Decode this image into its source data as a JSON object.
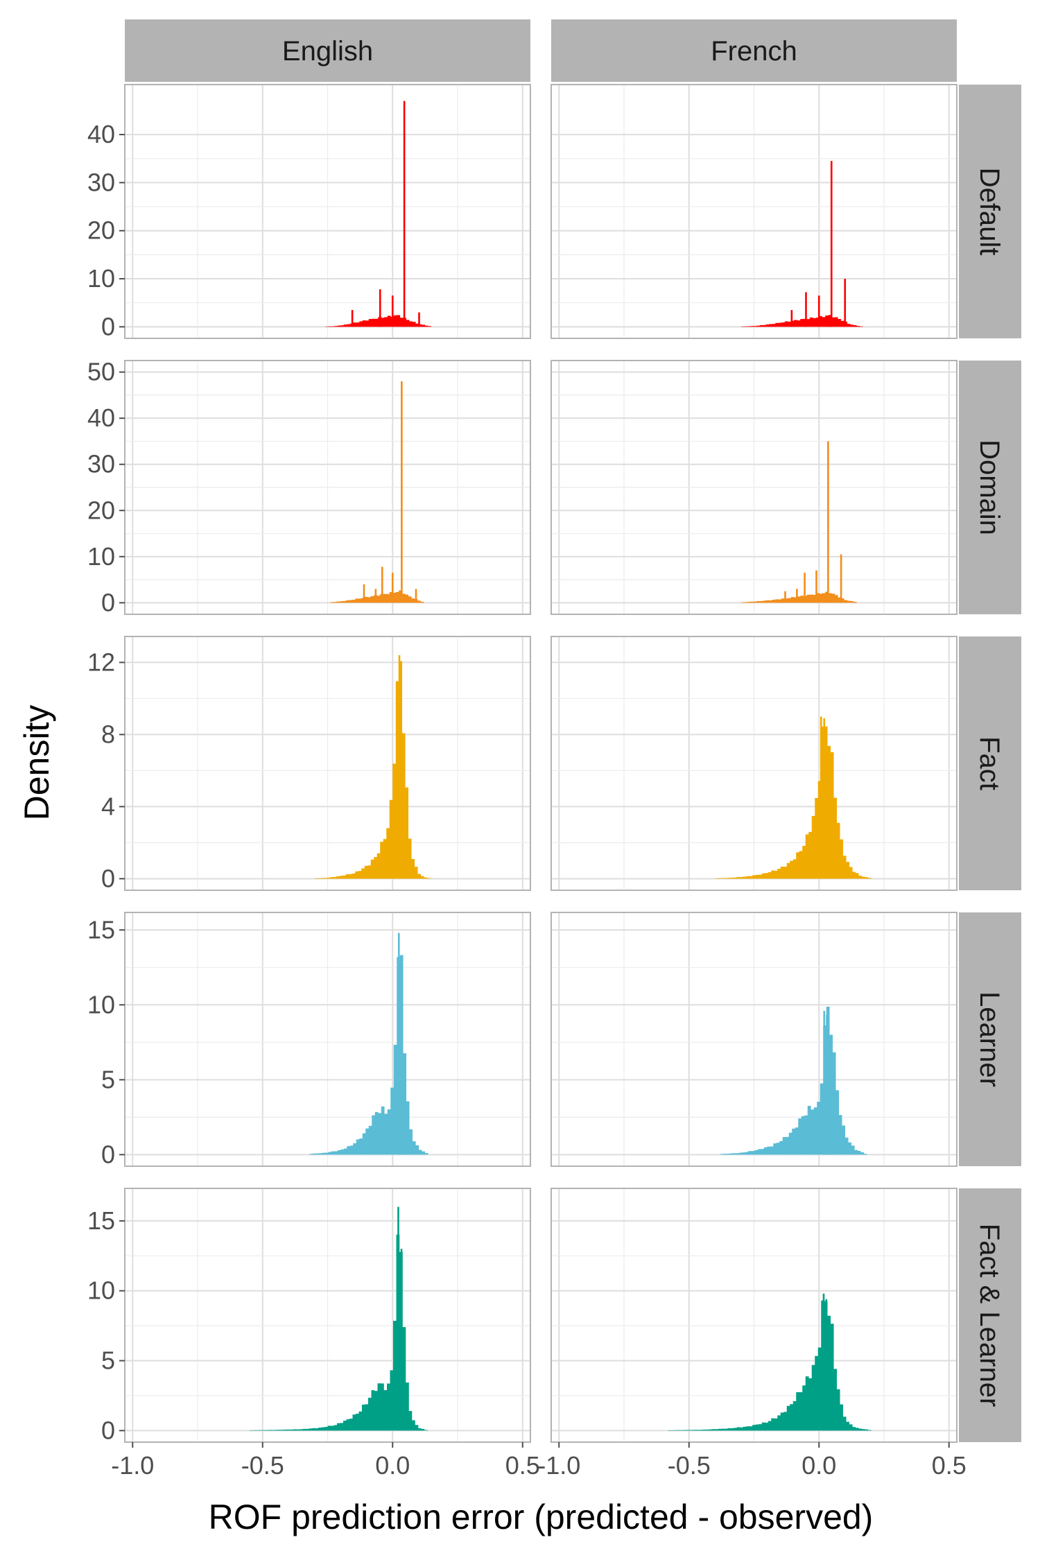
{
  "chart_data": {
    "type": "histogram-facet",
    "xlabel": "ROF prediction error (predicted - observed)",
    "ylabel": "Density",
    "x_range": [
      -1.0,
      0.5
    ],
    "x_ticks": [
      -1.0,
      -0.5,
      0.0,
      0.5
    ],
    "x_tick_labels": [
      "-1.0",
      "-0.5",
      "0.0",
      "0.5"
    ],
    "grid": true,
    "columns": [
      "English",
      "French"
    ],
    "rows": [
      {
        "name": "Default",
        "color": "#ff0000",
        "ylim": [
          0,
          48
        ],
        "yticks": [
          0,
          10,
          20,
          30,
          40
        ],
        "panels": [
          {
            "base": [
              [
                -0.26,
                0.05
              ],
              [
                -0.22,
                0.15
              ],
              [
                -0.18,
                0.45
              ],
              [
                -0.14,
                0.9
              ],
              [
                -0.1,
                1.4
              ],
              [
                -0.06,
                1.8
              ],
              [
                -0.02,
                2.1
              ],
              [
                0.02,
                2.4
              ],
              [
                0.06,
                1.4
              ],
              [
                0.1,
                0.6
              ],
              [
                0.14,
                0.15
              ]
            ],
            "spikes": [
              [
                -0.155,
                3.5
              ],
              [
                -0.048,
                7.8
              ],
              [
                0.0,
                6.5
              ],
              [
                0.045,
                47
              ],
              [
                0.102,
                3
              ]
            ]
          },
          {
            "base": [
              [
                -0.3,
                0.05
              ],
              [
                -0.24,
                0.2
              ],
              [
                -0.18,
                0.6
              ],
              [
                -0.12,
                1.1
              ],
              [
                -0.06,
                1.6
              ],
              [
                0.0,
                2.0
              ],
              [
                0.04,
                2.4
              ],
              [
                0.08,
                1.6
              ],
              [
                0.12,
                0.5
              ],
              [
                0.16,
                0.1
              ]
            ],
            "spikes": [
              [
                -0.105,
                3.5
              ],
              [
                -0.05,
                7.2
              ],
              [
                0.0,
                6.5
              ],
              [
                0.048,
                34.5
              ],
              [
                0.1,
                10
              ]
            ]
          }
        ]
      },
      {
        "name": "Domain",
        "color": "#f28e1c",
        "ylim": [
          0,
          50
        ],
        "yticks": [
          0,
          10,
          20,
          30,
          40,
          50
        ],
        "panels": [
          {
            "base": [
              [
                -0.24,
                0.1
              ],
              [
                -0.2,
                0.3
              ],
              [
                -0.16,
                0.6
              ],
              [
                -0.12,
                1.0
              ],
              [
                -0.08,
                1.4
              ],
              [
                -0.04,
                1.8
              ],
              [
                0.0,
                2.2
              ],
              [
                0.03,
                2.5
              ],
              [
                0.07,
                1.2
              ],
              [
                0.1,
                0.5
              ],
              [
                0.12,
                0.1
              ]
            ],
            "spikes": [
              [
                -0.11,
                4.0
              ],
              [
                -0.065,
                3.0
              ],
              [
                -0.04,
                7.8
              ],
              [
                0.0,
                6.5
              ],
              [
                0.035,
                48
              ],
              [
                0.09,
                3
              ]
            ]
          },
          {
            "base": [
              [
                -0.3,
                0.1
              ],
              [
                -0.24,
                0.3
              ],
              [
                -0.18,
                0.6
              ],
              [
                -0.12,
                1.0
              ],
              [
                -0.06,
                1.5
              ],
              [
                0.0,
                2.0
              ],
              [
                0.04,
                2.3
              ],
              [
                0.07,
                1.5
              ],
              [
                0.1,
                0.6
              ],
              [
                0.14,
                0.2
              ]
            ],
            "spikes": [
              [
                -0.13,
                2.5
              ],
              [
                -0.085,
                3.0
              ],
              [
                -0.055,
                6.5
              ],
              [
                -0.01,
                7.0
              ],
              [
                0.035,
                35
              ],
              [
                0.085,
                10.5
              ]
            ]
          }
        ]
      },
      {
        "name": "Fact",
        "color": "#f0ab00",
        "ylim": [
          0,
          12.8
        ],
        "yticks": [
          0,
          4,
          8,
          12
        ],
        "panels": [
          {
            "base": [
              [
                -0.3,
                0.02
              ],
              [
                -0.25,
                0.05
              ],
              [
                -0.2,
                0.15
              ],
              [
                -0.15,
                0.3
              ],
              [
                -0.12,
                0.5
              ],
              [
                -0.09,
                0.8
              ],
              [
                -0.06,
                1.3
              ],
              [
                -0.045,
                1.8
              ],
              [
                -0.03,
                2.3
              ],
              [
                -0.015,
                3.0
              ],
              [
                0.0,
                4.8
              ],
              [
                0.012,
                9.0
              ],
              [
                0.024,
                12.3
              ],
              [
                0.036,
                11.0
              ],
              [
                0.048,
                6.5
              ],
              [
                0.06,
                3.0
              ],
              [
                0.072,
                1.5
              ],
              [
                0.084,
                0.8
              ],
              [
                0.1,
                0.3
              ],
              [
                0.12,
                0.08
              ],
              [
                0.15,
                0.01
              ]
            ],
            "spikes": [
              [
                0.018,
                10.8
              ],
              [
                0.026,
                12.4
              ]
            ]
          },
          {
            "base": [
              [
                -0.4,
                0.02
              ],
              [
                -0.34,
                0.05
              ],
              [
                -0.28,
                0.12
              ],
              [
                -0.22,
                0.25
              ],
              [
                -0.16,
                0.5
              ],
              [
                -0.12,
                0.8
              ],
              [
                -0.09,
                1.2
              ],
              [
                -0.06,
                1.8
              ],
              [
                -0.04,
                2.5
              ],
              [
                -0.02,
                3.5
              ],
              [
                -0.01,
                4.3
              ],
              [
                0.0,
                5.5
              ],
              [
                0.012,
                7.8
              ],
              [
                0.024,
                8.6
              ],
              [
                0.036,
                8.0
              ],
              [
                0.048,
                6.8
              ],
              [
                0.06,
                5.0
              ],
              [
                0.075,
                3.0
              ],
              [
                0.09,
                1.7
              ],
              [
                0.11,
                0.9
              ],
              [
                0.13,
                0.45
              ],
              [
                0.16,
                0.15
              ],
              [
                0.2,
                0.03
              ]
            ],
            "spikes": [
              [
                0.008,
                9.0
              ],
              [
                0.02,
                8.9
              ]
            ]
          }
        ]
      },
      {
        "name": "Learner",
        "color": "#5bbcd6",
        "ylim": [
          0,
          15.4
        ],
        "yticks": [
          0,
          5,
          10,
          15
        ],
        "panels": [
          {
            "base": [
              [
                -0.32,
                0.05
              ],
              [
                -0.26,
                0.12
              ],
              [
                -0.2,
                0.3
              ],
              [
                -0.16,
                0.6
              ],
              [
                -0.13,
                1.0
              ],
              [
                -0.1,
                1.6
              ],
              [
                -0.08,
                2.3
              ],
              [
                -0.06,
                2.9
              ],
              [
                -0.04,
                3.0
              ],
              [
                -0.02,
                2.8
              ],
              [
                -0.005,
                3.5
              ],
              [
                0.006,
                6.0
              ],
              [
                0.018,
                11.8
              ],
              [
                0.03,
                14.8
              ],
              [
                0.042,
                9.0
              ],
              [
                0.054,
                4.0
              ],
              [
                0.066,
                2.0
              ],
              [
                0.08,
                1.0
              ],
              [
                0.1,
                0.4
              ],
              [
                0.13,
                0.1
              ]
            ],
            "spikes": [
              [
                0.024,
                14.8
              ],
              [
                0.036,
                12.0
              ]
            ]
          },
          {
            "base": [
              [
                -0.38,
                0.04
              ],
              [
                -0.3,
                0.12
              ],
              [
                -0.24,
                0.3
              ],
              [
                -0.18,
                0.6
              ],
              [
                -0.14,
                1.0
              ],
              [
                -0.1,
                1.6
              ],
              [
                -0.07,
                2.4
              ],
              [
                -0.04,
                3.0
              ],
              [
                -0.02,
                3.2
              ],
              [
                0.0,
                3.3
              ],
              [
                0.012,
                5.5
              ],
              [
                0.024,
                9.0
              ],
              [
                0.036,
                9.6
              ],
              [
                0.048,
                8.5
              ],
              [
                0.06,
                6.0
              ],
              [
                0.075,
                3.5
              ],
              [
                0.09,
                2.0
              ],
              [
                0.11,
                1.0
              ],
              [
                0.14,
                0.35
              ],
              [
                0.18,
                0.05
              ]
            ],
            "spikes": [
              [
                0.02,
                9.6
              ],
              [
                0.03,
                9.3
              ]
            ]
          }
        ]
      },
      {
        "name": "Fact & Learner",
        "color": "#00a087",
        "ylim": [
          0,
          16.5
        ],
        "yticks": [
          0,
          5,
          10,
          15
        ],
        "panels": [
          {
            "base": [
              [
                -0.55,
                0.02
              ],
              [
                -0.45,
                0.05
              ],
              [
                -0.35,
                0.1
              ],
              [
                -0.28,
                0.2
              ],
              [
                -0.22,
                0.4
              ],
              [
                -0.17,
                0.8
              ],
              [
                -0.13,
                1.3
              ],
              [
                -0.1,
                2.0
              ],
              [
                -0.08,
                2.6
              ],
              [
                -0.06,
                3.2
              ],
              [
                -0.04,
                3.3
              ],
              [
                -0.02,
                3.0
              ],
              [
                -0.008,
                3.4
              ],
              [
                0.004,
                6.5
              ],
              [
                0.016,
                11.5
              ],
              [
                0.028,
                16.0
              ],
              [
                0.04,
                9.0
              ],
              [
                0.052,
                4.0
              ],
              [
                0.064,
                1.8
              ],
              [
                0.08,
                0.7
              ],
              [
                0.1,
                0.2
              ],
              [
                0.13,
                0.03
              ]
            ],
            "spikes": [
              [
                0.022,
                16.0
              ],
              [
                0.034,
                13.0
              ]
            ]
          },
          {
            "base": [
              [
                -0.58,
                0.02
              ],
              [
                -0.45,
                0.06
              ],
              [
                -0.35,
                0.15
              ],
              [
                -0.27,
                0.3
              ],
              [
                -0.2,
                0.6
              ],
              [
                -0.15,
                1.1
              ],
              [
                -0.11,
                1.8
              ],
              [
                -0.08,
                2.6
              ],
              [
                -0.05,
                3.5
              ],
              [
                -0.03,
                4.2
              ],
              [
                -0.015,
                4.8
              ],
              [
                0.0,
                6.0
              ],
              [
                0.012,
                8.5
              ],
              [
                0.024,
                9.6
              ],
              [
                0.036,
                8.8
              ],
              [
                0.048,
                7.5
              ],
              [
                0.06,
                5.0
              ],
              [
                0.075,
                2.8
              ],
              [
                0.09,
                1.4
              ],
              [
                0.11,
                0.6
              ],
              [
                0.14,
                0.2
              ],
              [
                0.2,
                0.03
              ]
            ],
            "spikes": [
              [
                0.018,
                9.8
              ],
              [
                0.028,
                9.4
              ]
            ]
          }
        ]
      }
    ]
  }
}
